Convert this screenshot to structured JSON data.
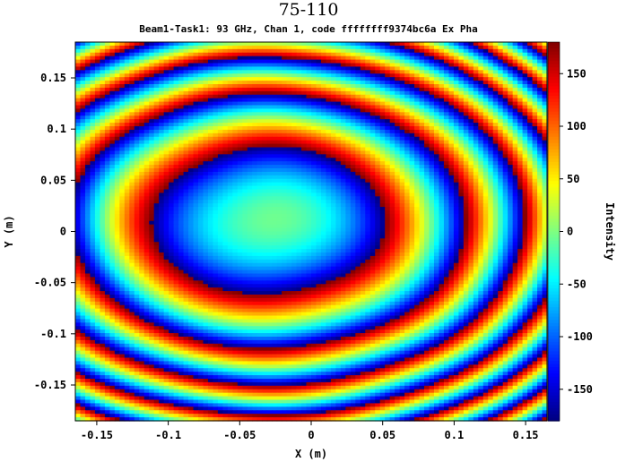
{
  "chart_data": {
    "type": "heatmap",
    "title": "75-110",
    "subtitle": "Beam1-Task1: 93 GHz, Chan 1, code ffffffff9374bc6a Ex Pha",
    "xlabel": "X (m)",
    "ylabel": "Y (m)",
    "colorbar_label": "Intensity",
    "xlim": [
      -0.165,
      0.165
    ],
    "ylim": [
      -0.185,
      0.185
    ],
    "clim": [
      -180,
      180
    ],
    "x_ticks": [
      -0.15,
      -0.1,
      -0.05,
      0,
      0.05,
      0.1,
      0.15
    ],
    "x_tick_labels": [
      "-0.15",
      "-0.1",
      "-0.05",
      "0",
      "0.05",
      "0.1",
      "0.15"
    ],
    "y_ticks": [
      0.15,
      0.1,
      0.05,
      0,
      -0.05,
      -0.1,
      -0.15
    ],
    "y_tick_labels": [
      "0.15",
      "0.1",
      "0.05",
      "0",
      "-0.05",
      "-0.1",
      "-0.15"
    ],
    "colorbar_ticks": [
      150,
      100,
      50,
      0,
      -50,
      -100,
      -150
    ],
    "colorbar_tick_labels": [
      "150",
      "100",
      "50",
      "0",
      "-50",
      "-100",
      "-150"
    ],
    "colormap": "jet",
    "field": {
      "description_free": true,
      "center": [
        -0.03,
        0.01
      ],
      "grid": [
        96,
        108
      ]
    }
  }
}
